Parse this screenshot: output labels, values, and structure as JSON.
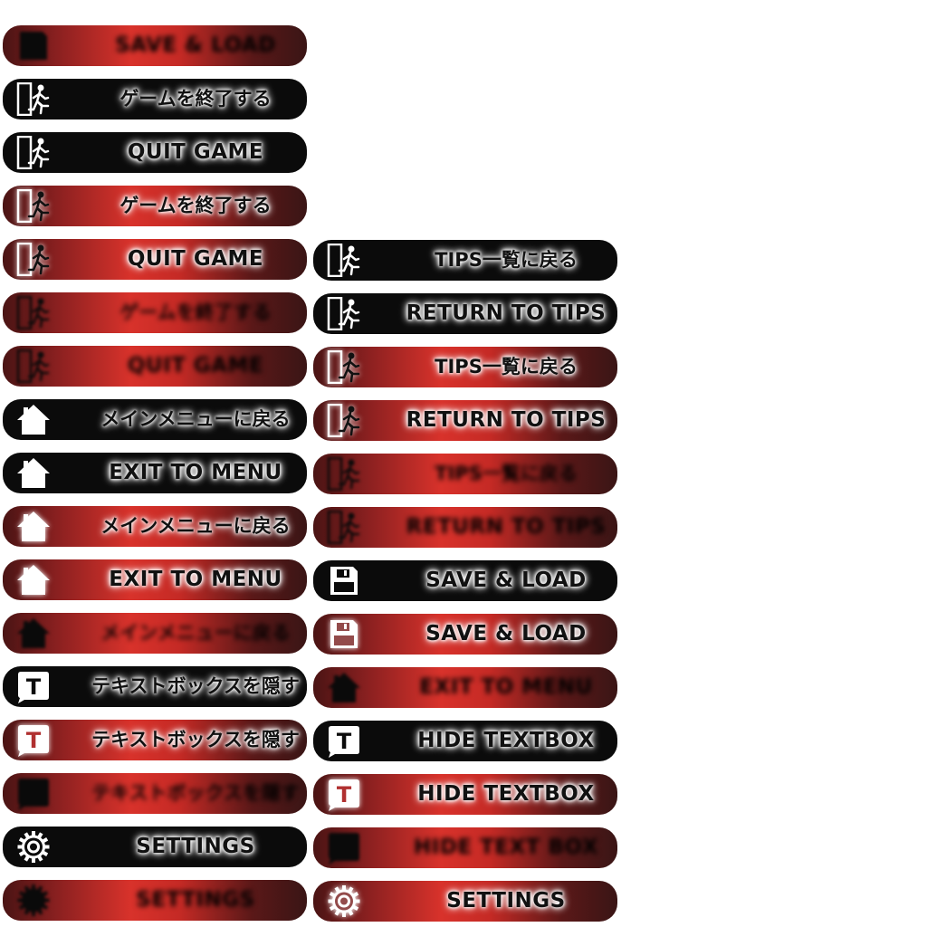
{
  "colors": {
    "normal_bg": "#0b0b0b",
    "gradient_center": "#d8322b",
    "gradient_edge": "#3a1515",
    "glow": "#ffffff"
  },
  "left_column": [
    {
      "label": "SAVE & LOAD",
      "icon": "floppy-disk-icon",
      "state": "disabled"
    },
    {
      "label": "ゲームを終了する",
      "icon": "exit-door-icon",
      "state": "normal"
    },
    {
      "label": "QUIT GAME",
      "icon": "exit-door-icon",
      "state": "normal"
    },
    {
      "label": "ゲームを終了する",
      "icon": "exit-door-icon",
      "state": "hover"
    },
    {
      "label": "QUIT GAME",
      "icon": "exit-door-icon",
      "state": "hover"
    },
    {
      "label": "ゲームを終了する",
      "icon": "exit-door-icon",
      "state": "disabled"
    },
    {
      "label": "QUIT GAME",
      "icon": "exit-door-icon",
      "state": "disabled"
    },
    {
      "label": "メインメニューに戻る",
      "icon": "home-icon",
      "state": "normal"
    },
    {
      "label": "EXIT TO MENU",
      "icon": "home-icon",
      "state": "normal"
    },
    {
      "label": "メインメニューに戻る",
      "icon": "home-icon",
      "state": "hover"
    },
    {
      "label": "EXIT TO MENU",
      "icon": "home-icon",
      "state": "hover"
    },
    {
      "label": "メインメニューに戻る",
      "icon": "home-icon",
      "state": "disabled"
    },
    {
      "label": "テキストボックスを隠す",
      "icon": "textbox-icon",
      "state": "normal"
    },
    {
      "label": "テキストボックスを隠す",
      "icon": "textbox-icon",
      "state": "hover"
    },
    {
      "label": "テキストボックスを隠す",
      "icon": "textbox-icon",
      "state": "disabled"
    },
    {
      "label": "SETTINGS",
      "icon": "gear-icon",
      "state": "normal"
    },
    {
      "label": "SETTINGS",
      "icon": "gear-icon",
      "state": "disabled"
    }
  ],
  "right_column": [
    {
      "label": "TIPS一覧に戻る",
      "icon": "exit-door-icon",
      "state": "normal"
    },
    {
      "label": "RETURN TO TIPS",
      "icon": "exit-door-icon",
      "state": "normal"
    },
    {
      "label": "TIPS一覧に戻る",
      "icon": "exit-door-icon",
      "state": "hover"
    },
    {
      "label": "RETURN TO TIPS",
      "icon": "exit-door-icon",
      "state": "hover"
    },
    {
      "label": "TIPS一覧に戻る",
      "icon": "exit-door-icon",
      "state": "disabled"
    },
    {
      "label": "RETURN TO TIPS",
      "icon": "exit-door-icon",
      "state": "disabled"
    },
    {
      "label": "SAVE & LOAD",
      "icon": "floppy-disk-icon",
      "state": "normal"
    },
    {
      "label": "SAVE & LOAD",
      "icon": "floppy-disk-icon",
      "state": "hover"
    },
    {
      "label": "EXIT TO MENU",
      "icon": "home-icon",
      "state": "disabled"
    },
    {
      "label": "HIDE TEXTBOX",
      "icon": "textbox-icon",
      "state": "normal"
    },
    {
      "label": "HIDE TEXTBOX",
      "icon": "textbox-icon",
      "state": "hover"
    },
    {
      "label": "HIDE TEXT BOX",
      "icon": "textbox-icon",
      "state": "disabled"
    },
    {
      "label": "SETTINGS",
      "icon": "gear-icon",
      "state": "hover"
    }
  ]
}
